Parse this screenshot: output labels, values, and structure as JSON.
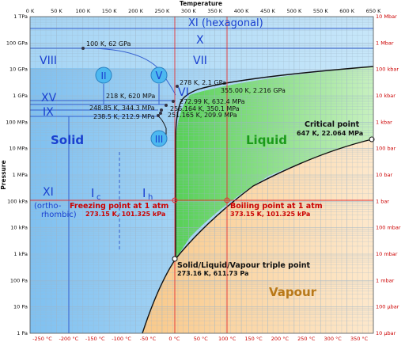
{
  "axes": {
    "top_title": "Temperature",
    "left_title": "Pressure",
    "top_ticks": [
      "0 K",
      "50 K",
      "100 K",
      "150 K",
      "200 K",
      "250 K",
      "300 K",
      "350 K",
      "400 K",
      "450 K",
      "500 K",
      "550 K",
      "600 K",
      "650 K"
    ],
    "bottom_ticks": [
      "-250 °C",
      "-200 °C",
      "-150 °C",
      "-100 °C",
      "-50 °C",
      "0 °C",
      "50 °C",
      "100 °C",
      "150 °C",
      "200 °C",
      "250 °C",
      "300 °C",
      "350 °C"
    ],
    "left_ticks": [
      "1 TPa",
      "100 GPa",
      "10 GPa",
      "1 GPa",
      "100 MPa",
      "10 MPa",
      "1 MPa",
      "100 kPa",
      "10 kPa",
      "1 kPa",
      "100 Pa",
      "10 Pa",
      "1 Pa"
    ],
    "right_ticks": [
      "10 Mbar",
      "1 Mbar",
      "100 kbar",
      "10 kbar",
      "1 kbar",
      "100 bar",
      "10 bar",
      "1 bar",
      "100 mbar",
      "10 mbar",
      "1 mbar",
      "100 µbar",
      "10 µbar"
    ]
  },
  "regions": {
    "solid": "Solid",
    "liquid": "Liquid",
    "vapour": "Vapour",
    "phase_xi_hex": "XI (hexagonal)",
    "phase_x": "X",
    "phase_viii": "VIII",
    "phase_vii": "VII",
    "phase_ii": "II",
    "phase_v": "V",
    "phase_vi": "VI",
    "phase_xv": "XV",
    "phase_ix": "IX",
    "phase_iii": "III",
    "phase_xi_ortho": "XI",
    "phase_xi_ortho_sub": "(ortho-rhombic)",
    "phase_ic": "I",
    "phase_ic_sub": "c",
    "phase_ih": "I",
    "phase_ih_sub": "h"
  },
  "annotations": {
    "p100k": "100 K, 62 GPa",
    "p278k": "278 K, 2.1 GPa",
    "p355k": "355.00 K, 2.216 GPa",
    "p218k": "218 K, 620 MPa",
    "p272k": "272.99 K, 632.4 MPa",
    "p248k": "248.85 K, 344.3 MPa",
    "p256k": "256.164 K, 350.1 MPa",
    "p238k": "238.5 K, 212.9 MPa",
    "p251k": "251.165 K, 209.9 MPa",
    "critical_title": "Critical point",
    "critical_value": "647 K, 22.064 MPa",
    "freezing_title": "Freezing point at 1 atm",
    "freezing_value": "273.15 K, 101.325 kPa",
    "boiling_title": "Boiling point at 1 atm",
    "boiling_value": "373.15 K, 101.325 kPa",
    "triple_title": "Solid/Liquid/Vapour triple point",
    "triple_value": "273.16 K, 611.73 Pa"
  },
  "colors": {
    "solid": "#a8d8f5",
    "liquid": "#8fe08f",
    "vapour": "#fad9a8",
    "high_pressure": "#8cc4ee",
    "grid": "#9db5c8",
    "red_line": "#e53030",
    "axis_red": "#cc0000",
    "phase_text": "#1a40d0",
    "bubble": "#4db8f0"
  }
}
